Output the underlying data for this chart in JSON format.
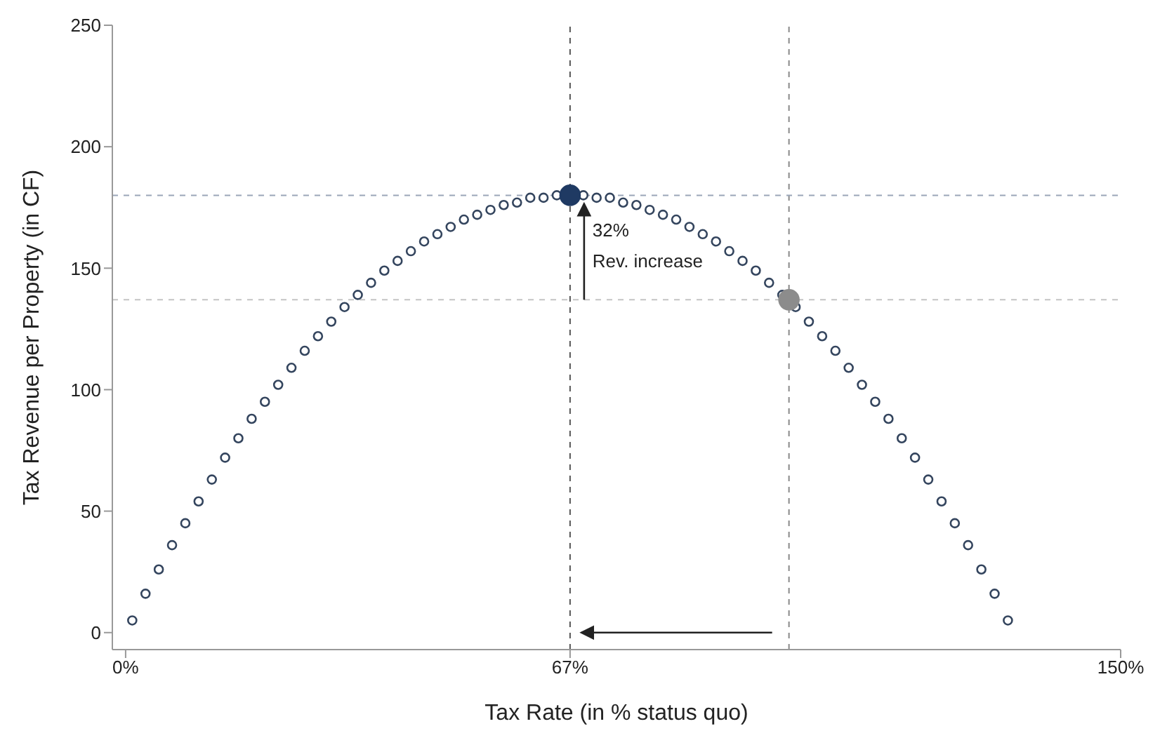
{
  "chart_data": {
    "type": "scatter",
    "xlabel": "Tax Rate (in % status quo)",
    "ylabel": "Tax Revenue per Property (in CF)",
    "xlim": [
      -2,
      150
    ],
    "ylim": [
      -7,
      250
    ],
    "xticks": [
      {
        "value": 0,
        "label": "0%"
      },
      {
        "value": 67,
        "label": "67%"
      },
      {
        "value": 150,
        "label": "150%"
      }
    ],
    "yticks": [
      0,
      50,
      100,
      150,
      200,
      250
    ],
    "marker": "circle",
    "series": [
      {
        "color": "#34455e",
        "x": [
          1,
          3,
          5,
          7,
          9,
          11,
          13,
          15,
          17,
          19,
          21,
          23,
          25,
          27,
          29,
          31,
          33,
          35,
          37,
          39,
          41,
          43,
          45,
          47,
          49,
          51,
          53,
          55,
          57,
          59,
          61,
          63,
          65,
          69,
          71,
          73,
          75,
          77,
          79,
          81,
          83,
          85,
          87,
          89,
          91,
          93,
          95,
          97,
          99,
          101,
          103,
          105,
          107,
          109,
          111,
          113,
          115,
          117,
          119,
          121,
          123,
          125,
          127,
          129,
          131,
          133
        ],
        "values": [
          5,
          16,
          26,
          36,
          45,
          54,
          63,
          72,
          80,
          88,
          95,
          102,
          109,
          116,
          122,
          128,
          134,
          139,
          144,
          149,
          153,
          157,
          161,
          164,
          167,
          170,
          172,
          174,
          176,
          177,
          179,
          179,
          180,
          180,
          179,
          179,
          177,
          176,
          174,
          172,
          170,
          167,
          164,
          161,
          157,
          153,
          149,
          144,
          139,
          134,
          128,
          122,
          116,
          109,
          102,
          95,
          88,
          80,
          72,
          63,
          54,
          45,
          36,
          26,
          16,
          5
        ]
      },
      {
        "type": "scatter",
        "x": [
          67,
          100
        ],
        "values": [
          180,
          137
        ],
        "colors": [
          "#1f3a63",
          "#8c8c8c"
        ]
      }
    ],
    "ref_lines": [
      {
        "axis": "x",
        "value": 67,
        "color": "#555555",
        "line_style": "dashed"
      },
      {
        "axis": "x",
        "value": 100,
        "color": "#888888",
        "line_style": "dashed"
      },
      {
        "axis": "y",
        "value": 180,
        "color": "#9aa6b8",
        "line_style": "dashed"
      },
      {
        "axis": "y",
        "value": 137,
        "color": "#c4c4c4",
        "line_style": "dashed"
      }
    ],
    "annotations": [
      "32%",
      "Rev. increase"
    ]
  }
}
